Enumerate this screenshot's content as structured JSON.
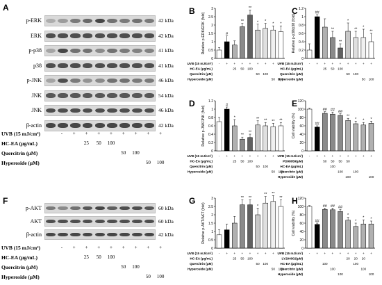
{
  "panels": {
    "A": {
      "letter": "A",
      "rows": [
        {
          "label": "p-ERK",
          "kda": "42 kDa",
          "intensity": [
            0.25,
            0.35,
            0.55,
            0.65,
            0.85,
            0.6,
            0.55,
            0.6,
            0.55
          ]
        },
        {
          "label": "ERK",
          "kda": "42 kDa",
          "intensity": [
            0.8,
            0.8,
            0.8,
            0.8,
            0.8,
            0.8,
            0.8,
            0.8,
            0.8
          ]
        },
        {
          "label": "p-p38",
          "kda": "41 kDa",
          "intensity": [
            0.3,
            0.85,
            0.6,
            0.6,
            0.45,
            0.6,
            0.55,
            0.5,
            0.5
          ]
        },
        {
          "label": "p38",
          "kda": "41 kDa",
          "intensity": [
            0.8,
            0.8,
            0.8,
            0.8,
            0.8,
            0.8,
            0.8,
            0.8,
            0.8
          ]
        },
        {
          "label": "p-JNK",
          "kda": "46 kDa",
          "intensity": [
            0.3,
            0.8,
            0.55,
            0.4,
            0.45,
            0.6,
            0.6,
            0.55,
            0.55
          ]
        },
        {
          "label": "JNK",
          "kda": "54 kDa",
          "intensity": [
            0.75,
            0.75,
            0.75,
            0.75,
            0.75,
            0.75,
            0.75,
            0.75,
            0.75
          ]
        },
        {
          "label": "JNK",
          "kda": "46 kDa",
          "intensity": [
            0.8,
            0.8,
            0.8,
            0.8,
            0.8,
            0.8,
            0.8,
            0.8,
            0.8
          ]
        },
        {
          "label": "β-actin",
          "kda": "42 kDa",
          "intensity": [
            0.85,
            0.85,
            0.85,
            0.85,
            0.85,
            0.85,
            0.85,
            0.85,
            0.85
          ]
        }
      ],
      "treatments": [
        {
          "label": "UVB (15 mJ/cm²)",
          "values": [
            "-",
            "+",
            "+",
            "+",
            "+",
            "+",
            "+",
            "+",
            "+"
          ]
        },
        {
          "label": "HC-EA (μg/mL)",
          "values": [
            "",
            "",
            "25",
            "50",
            "100",
            "",
            "",
            "",
            ""
          ]
        },
        {
          "label": "Quercitrin (μM)",
          "values": [
            "",
            "",
            "",
            "",
            "",
            "50",
            "100",
            "",
            ""
          ]
        },
        {
          "label": "Hyperoside (μM)",
          "values": [
            "",
            "",
            "",
            "",
            "",
            "",
            "",
            "50",
            "100"
          ]
        }
      ]
    },
    "F": {
      "letter": "F",
      "rows": [
        {
          "label": "p-AKT",
          "kda": "60 kDa",
          "intensity": [
            0.55,
            0.45,
            0.6,
            0.75,
            0.85,
            0.7,
            0.8,
            0.8,
            0.75
          ]
        },
        {
          "label": "AKT",
          "kda": "60 kDa",
          "intensity": [
            0.8,
            0.8,
            0.8,
            0.8,
            0.8,
            0.8,
            0.8,
            0.8,
            0.8
          ]
        },
        {
          "label": "β-actin",
          "kda": "42 kDa",
          "intensity": [
            0.85,
            0.85,
            0.85,
            0.85,
            0.85,
            0.85,
            0.85,
            0.85,
            0.85
          ]
        }
      ],
      "treatments": [
        {
          "label": "UVB (15 mJ/cm²)",
          "values": [
            "-",
            "+",
            "+",
            "+",
            "+",
            "+",
            "+",
            "+",
            "+"
          ]
        },
        {
          "label": "HC-EA (μg/mL)",
          "values": [
            "",
            "",
            "25",
            "50",
            "100",
            "",
            "",
            "",
            ""
          ]
        },
        {
          "label": "Quercitrin (μM)",
          "values": [
            "",
            "",
            "",
            "",
            "",
            "50",
            "100",
            "",
            ""
          ]
        },
        {
          "label": "Hyperoside (μM)",
          "values": [
            "",
            "",
            "",
            "",
            "",
            "",
            "",
            "50",
            "100"
          ]
        }
      ]
    }
  },
  "chart_data": [
    {
      "panel": "B",
      "type": "bar",
      "ylabel": "Relative p-ERK/ERK (fold)",
      "ylim": [
        0,
        3
      ],
      "yticks": [
        "0",
        "0.5",
        "1",
        "1.5",
        "2",
        "2.5",
        "3"
      ],
      "values": [
        0.5,
        1.0,
        0.8,
        1.9,
        2.6,
        1.7,
        1.8,
        1.7,
        1.6
      ],
      "errors": [
        0.15,
        0.35,
        0.25,
        0.2,
        0.3,
        0.35,
        0.3,
        0.25,
        0.35
      ],
      "sig": [
        "",
        "#",
        "",
        "**",
        "**",
        "*",
        "*",
        "*",
        "*"
      ],
      "colors": [
        "#ffffff",
        "#000000",
        "#b0b0b0",
        "#8a8a8a",
        "#606060",
        "#c8c8c8",
        "#e0e0e0",
        "#f0f0f0",
        "#ffffff"
      ],
      "treatments": [
        {
          "label": "UVB (15 mJ/cm²)",
          "values": [
            "-",
            "+",
            "+",
            "+",
            "+",
            "+",
            "+",
            "+",
            "+"
          ]
        },
        {
          "label": "HC-EA (μg/mL)",
          "values": [
            "",
            "",
            "25",
            "50",
            "100",
            "",
            "",
            "",
            ""
          ]
        },
        {
          "label": "Quercitrin (μM)",
          "values": [
            "",
            "",
            "",
            "",
            "",
            "50",
            "100",
            "",
            ""
          ]
        },
        {
          "label": "Hyperoside (μM)",
          "values": [
            "",
            "",
            "",
            "",
            "",
            "",
            "",
            "50",
            "100"
          ]
        }
      ]
    },
    {
      "panel": "C",
      "type": "bar",
      "ylabel": "Relative p-p38/p38 (fold)",
      "ylim": [
        0,
        1.2
      ],
      "yticks": [
        "0",
        "0.2",
        "0.4",
        "0.6",
        "0.8",
        "1",
        "1.2"
      ],
      "values": [
        0.2,
        1.0,
        0.75,
        0.5,
        0.25,
        0.65,
        0.5,
        0.5,
        0.4
      ],
      "errors": [
        0.15,
        0.05,
        0.2,
        0.15,
        0.1,
        0.2,
        0.15,
        0.2,
        0.2
      ],
      "sig": [
        "",
        "##",
        "",
        "**",
        "**",
        "*",
        "**",
        "*",
        "**"
      ],
      "colors": [
        "#ffffff",
        "#000000",
        "#b0b0b0",
        "#8a8a8a",
        "#606060",
        "#c8c8c8",
        "#e0e0e0",
        "#f0f0f0",
        "#ffffff"
      ],
      "treatments": [
        {
          "label": "UVB (15 mJ/cm²)",
          "values": [
            "-",
            "+",
            "+",
            "+",
            "+",
            "+",
            "+",
            "+",
            "+"
          ]
        },
        {
          "label": "HC-EA (μg/mL)",
          "values": [
            "",
            "",
            "25",
            "50",
            "100",
            "",
            "",
            "",
            ""
          ]
        },
        {
          "label": "Quercitrin (μM)",
          "values": [
            "",
            "",
            "",
            "",
            "",
            "50",
            "100",
            "",
            ""
          ]
        },
        {
          "label": "Hyperoside (μM)",
          "values": [
            "",
            "",
            "",
            "",
            "",
            "",
            "",
            "50",
            "100"
          ]
        }
      ]
    },
    {
      "panel": "D",
      "type": "bar",
      "ylabel": "Relative p-JNK/JNK (fold)",
      "ylim": [
        0,
        1.2
      ],
      "yticks": [
        "0",
        "0.2",
        "0.4",
        "0.6",
        "0.8",
        "1",
        "1.2"
      ],
      "values": [
        0.7,
        1.0,
        0.6,
        0.28,
        0.32,
        0.62,
        0.6,
        0.58,
        0.6
      ],
      "errors": [
        0.1,
        0.05,
        0.15,
        0.05,
        0.08,
        0.1,
        0.08,
        0.08,
        0.08
      ],
      "sig": [
        "",
        "#",
        "*",
        "**",
        "**",
        "**",
        "**",
        "**",
        "**"
      ],
      "colors": [
        "#ffffff",
        "#000000",
        "#b0b0b0",
        "#8a8a8a",
        "#606060",
        "#c8c8c8",
        "#e0e0e0",
        "#f0f0f0",
        "#ffffff"
      ],
      "treatments": [
        {
          "label": "UVB (15 mJ/cm²)",
          "values": [
            "-",
            "+",
            "+",
            "+",
            "+",
            "+",
            "+",
            "+",
            "+"
          ]
        },
        {
          "label": "HC-EA (μg/mL)",
          "values": [
            "",
            "",
            "25",
            "50",
            "100",
            "",
            "",
            "",
            ""
          ]
        },
        {
          "label": "Quercitrin (μM)",
          "values": [
            "",
            "",
            "",
            "",
            "",
            "50",
            "100",
            "",
            ""
          ]
        },
        {
          "label": "Hyperoside (μM)",
          "values": [
            "",
            "",
            "",
            "",
            "",
            "",
            "",
            "50",
            "100"
          ]
        }
      ]
    },
    {
      "panel": "E",
      "type": "bar",
      "ylabel": "Cell viability (%)",
      "ylim": [
        0,
        120
      ],
      "yticks": [
        "0",
        "20",
        "40",
        "60",
        "80",
        "100",
        "120"
      ],
      "values": [
        100,
        57,
        90,
        88,
        85,
        73,
        65,
        62,
        66
      ],
      "errors": [
        2,
        3,
        4,
        5,
        4,
        5,
        6,
        6,
        5
      ],
      "sig": [
        "",
        "##",
        "##",
        "##",
        "##",
        "**",
        "*",
        "*",
        "*"
      ],
      "colors": [
        "#ffffff",
        "#000000",
        "#8a8a8a",
        "#8a8a8a",
        "#8a8a8a",
        "#b0b0b0",
        "#b0b0b0",
        "#b0b0b0",
        "#b0b0b0"
      ],
      "treatments": [
        {
          "label": "UVB (15 mJ/cm²)",
          "values": [
            "-",
            "+",
            "+",
            "+",
            "+",
            "+",
            "+",
            "+",
            "+"
          ]
        },
        {
          "label": "PD98059(μM)",
          "values": [
            "",
            "",
            "50",
            "50",
            "50",
            "50",
            "",
            "",
            ""
          ]
        },
        {
          "label": "HC-EA (μg/mL)",
          "values": [
            "",
            "",
            "",
            "100",
            "",
            "",
            "",
            "",
            ""
          ]
        },
        {
          "label": "Quercitrin (μM)",
          "values": [
            "",
            "",
            "",
            "",
            "100",
            "",
            "100",
            "",
            ""
          ]
        },
        {
          "label": "Hyperoside (μM)",
          "values": [
            "",
            "",
            "",
            "",
            "",
            "100",
            "",
            "",
            "100"
          ]
        }
      ]
    },
    {
      "panel": "G",
      "type": "bar",
      "ylabel": "Relative p-AKT/AKT (fold)",
      "ylim": [
        0,
        3
      ],
      "yticks": [
        "0",
        "0.5",
        "1",
        "1.5",
        "2",
        "2.5",
        "3"
      ],
      "values": [
        0.8,
        1.1,
        1.5,
        2.6,
        2.6,
        2.0,
        2.7,
        2.8,
        2.5
      ],
      "errors": [
        0.3,
        0.35,
        0.4,
        0.3,
        0.3,
        0.4,
        0.4,
        0.35,
        0.4
      ],
      "sig": [
        "",
        "",
        "",
        "**",
        "**",
        "*",
        "**",
        "**",
        "**"
      ],
      "colors": [
        "#ffffff",
        "#000000",
        "#b0b0b0",
        "#8a8a8a",
        "#606060",
        "#c8c8c8",
        "#e0e0e0",
        "#f0f0f0",
        "#ffffff"
      ],
      "treatments": [
        {
          "label": "UVB (15 mJ/cm²)",
          "values": [
            "-",
            "+",
            "+",
            "+",
            "+",
            "+",
            "+",
            "+",
            "+"
          ]
        },
        {
          "label": "HC-EA (μg/mL)",
          "values": [
            "",
            "",
            "25",
            "50",
            "100",
            "",
            "",
            "",
            ""
          ]
        },
        {
          "label": "Quercitrin (μM)",
          "values": [
            "",
            "",
            "",
            "",
            "",
            "50",
            "100",
            "",
            ""
          ]
        },
        {
          "label": "Hyperoside (μM)",
          "values": [
            "",
            "",
            "",
            "",
            "",
            "",
            "",
            "50",
            "100"
          ]
        }
      ]
    },
    {
      "panel": "H",
      "type": "bar",
      "ylabel": "Cell viability (%)",
      "ylim": [
        0,
        120
      ],
      "yticks": [
        "0",
        "20",
        "40",
        "60",
        "80",
        "100",
        "120"
      ],
      "values": [
        100,
        57,
        93,
        92,
        88,
        67,
        52,
        58,
        58
      ],
      "errors": [
        2,
        3,
        3,
        4,
        5,
        7,
        8,
        10,
        7
      ],
      "sig": [
        "",
        "##",
        "##",
        "##",
        "##",
        "*",
        "*",
        "*",
        "*"
      ],
      "colors": [
        "#ffffff",
        "#000000",
        "#8a8a8a",
        "#8a8a8a",
        "#8a8a8a",
        "#b0b0b0",
        "#b0b0b0",
        "#b0b0b0",
        "#b0b0b0"
      ],
      "treatments": [
        {
          "label": "UVB (15 mJ/cm²)",
          "values": [
            "-",
            "+",
            "+",
            "+",
            "+",
            "+",
            "+",
            "+",
            "+"
          ]
        },
        {
          "label": "LY294002(μM)",
          "values": [
            "",
            "",
            "",
            "",
            "",
            "20",
            "20",
            "20",
            ""
          ]
        },
        {
          "label": "HC-EA (μg/mL)",
          "values": [
            "",
            "",
            "100",
            "",
            "",
            "",
            "100",
            "",
            ""
          ]
        },
        {
          "label": "Quercitrin (μM)",
          "values": [
            "",
            "",
            "",
            "100",
            "",
            "",
            "",
            "100",
            ""
          ]
        },
        {
          "label": "Hyperoside (μM)",
          "values": [
            "",
            "",
            "",
            "",
            "100",
            "",
            "",
            "",
            "100"
          ]
        }
      ]
    }
  ]
}
